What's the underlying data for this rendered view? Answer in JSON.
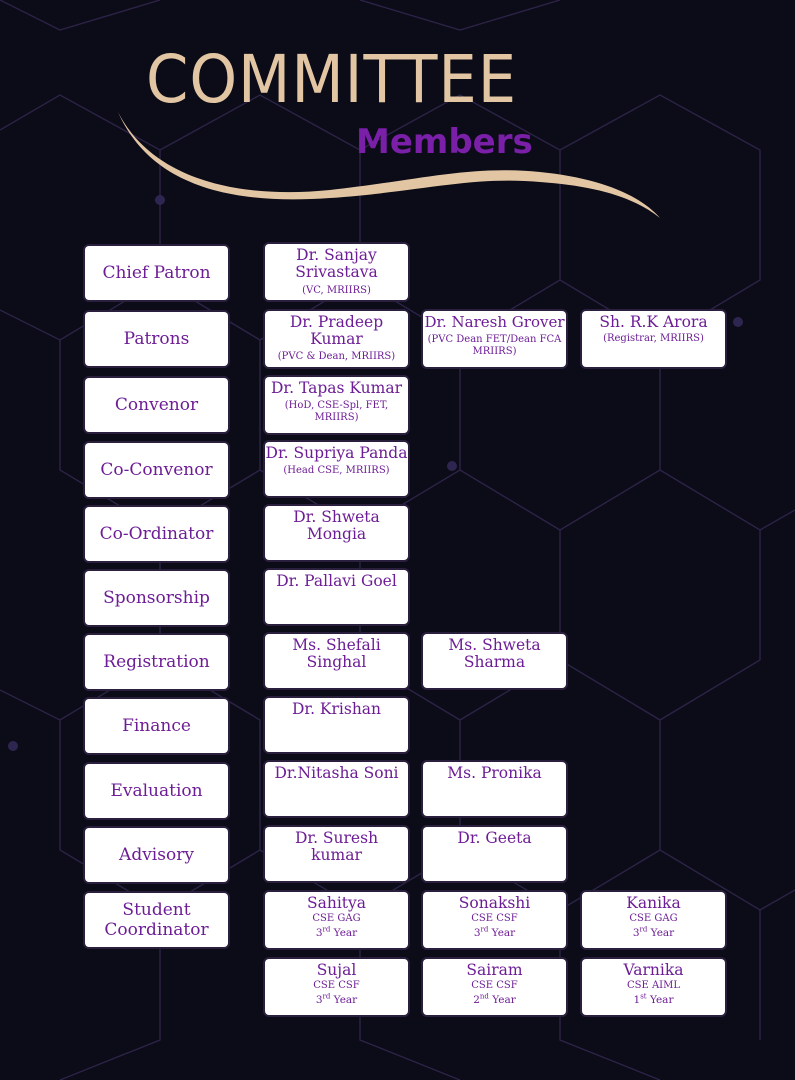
{
  "header": {
    "title": "COMMITTEE",
    "subtitle": "Members"
  },
  "committee": {
    "chief_patron": {
      "role": "Chief Patron",
      "members": [
        {
          "name": "Dr. Sanjay Srivastava",
          "info": "(VC, MRIIRS)"
        }
      ]
    },
    "patrons": {
      "role": "Patrons",
      "members": [
        {
          "name": "Dr. Pradeep Kumar",
          "info": "(PVC & Dean, MRIIRS)"
        },
        {
          "name": "Dr. Naresh Grover",
          "info": "(PVC Dean FET/Dean FCA MRIIRS)"
        },
        {
          "name": "Sh. R.K Arora",
          "info": "(Registrar, MRIIRS)"
        }
      ]
    },
    "convenor": {
      "role": "Convenor",
      "members": [
        {
          "name": "Dr. Tapas Kumar",
          "info": "(HoD, CSE-Spl, FET, MRIIRS)"
        }
      ]
    },
    "co_convenor": {
      "role": "Co-Convenor",
      "members": [
        {
          "name": "Dr. Supriya Panda",
          "info": "(Head CSE, MRIIRS)"
        }
      ]
    },
    "co_ordinator": {
      "role": "Co-Ordinator",
      "members": [
        {
          "name": "Dr. Shweta Mongia"
        }
      ]
    },
    "sponsorship": {
      "role": "Sponsorship",
      "members": [
        {
          "name": "Dr. Pallavi Goel"
        }
      ]
    },
    "registration": {
      "role": "Registration",
      "members": [
        {
          "name": "Ms. Shefali Singhal"
        },
        {
          "name": "Ms. Shweta Sharma"
        }
      ]
    },
    "finance": {
      "role": "Finance",
      "members": [
        {
          "name": "Dr. Krishan"
        }
      ]
    },
    "evaluation": {
      "role": "Evaluation",
      "members": [
        {
          "name": "Dr.Nitasha Soni"
        },
        {
          "name": "Ms. Pronika"
        }
      ]
    },
    "advisory": {
      "role": "Advisory",
      "members": [
        {
          "name": "Dr. Suresh kumar"
        },
        {
          "name": "Dr. Geeta"
        }
      ]
    },
    "student_coordinator": {
      "role_line1": "Student",
      "role_line2": "Coordinator",
      "members": [
        {
          "name": "Sahitya",
          "dept": "CSE GAG",
          "year_num": "3",
          "year_sup": "rd",
          "year_word": "Year"
        },
        {
          "name": "Sonakshi",
          "dept": "CSE CSF",
          "year_num": "3",
          "year_sup": "rd",
          "year_word": "Year"
        },
        {
          "name": "Kanika",
          "dept": "CSE GAG",
          "year_num": "3",
          "year_sup": "rd",
          "year_word": "Year"
        },
        {
          "name": "Sujal",
          "dept": "CSE CSF",
          "year_num": "3",
          "year_sup": "rd",
          "year_word": "Year"
        },
        {
          "name": "Sairam",
          "dept": "CSE CSF",
          "year_num": "2",
          "year_sup": "nd",
          "year_word": "Year"
        },
        {
          "name": "Varnika",
          "dept": "CSE AIML",
          "year_num": "1",
          "year_sup": "st",
          "year_word": "Year"
        }
      ]
    }
  },
  "colors": {
    "background": "#0c0b18",
    "title": "#e2c6a4",
    "subtitle": "#7a1fa8",
    "card_text": "#6d1d95",
    "network": "#2c2346"
  }
}
